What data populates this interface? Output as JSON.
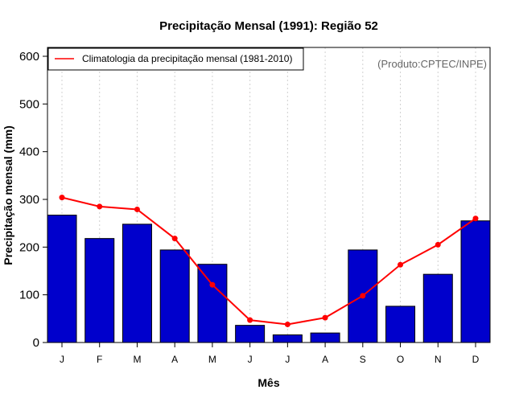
{
  "chart_data": {
    "type": "bar",
    "title": "Precipitação Mensal (1991): Região 52",
    "xlabel": "Mês",
    "ylabel": "Precipitação mensal (mm)",
    "categories": [
      "J",
      "F",
      "M",
      "A",
      "M",
      "J",
      "J",
      "A",
      "S",
      "O",
      "N",
      "D"
    ],
    "series": [
      {
        "name": "Precipitação mensal (1991)",
        "type": "bar",
        "color": "#0000cc",
        "values": [
          267,
          218,
          248,
          194,
          164,
          36,
          16,
          20,
          194,
          76,
          143,
          255
        ]
      },
      {
        "name": "Climatologia da precipitação mensal (1981-2010)",
        "type": "line",
        "color": "#ff0000",
        "values": [
          304,
          285,
          279,
          218,
          121,
          47,
          38,
          52,
          98,
          163,
          205,
          260
        ]
      }
    ],
    "ylim": [
      0,
      600
    ],
    "yticks": [
      0,
      100,
      200,
      300,
      400,
      500,
      600
    ],
    "grid": "vertical-dotted",
    "legend": {
      "position": "top-left",
      "entries": [
        "Climatologia da precipitação mensal (1981-2010)"
      ]
    },
    "annotation": "(Produto:CPTEC/INPE)"
  }
}
